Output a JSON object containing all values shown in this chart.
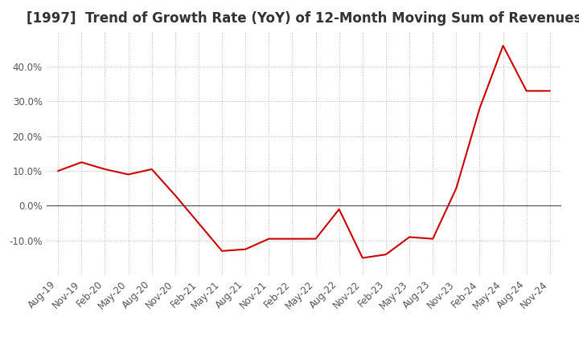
{
  "title": "[1997]  Trend of Growth Rate (YoY) of 12-Month Moving Sum of Revenues",
  "line_color": "#cc0000",
  "bg_color": "#ffffff",
  "plot_bg_color": "#ffffff",
  "grid_color": "#bbbbbb",
  "zero_line_color": "#555555",
  "title_color": "#333333",
  "tick_label_color": "#555555",
  "x_labels": [
    "Aug-19",
    "Nov-19",
    "Feb-20",
    "May-20",
    "Aug-20",
    "Nov-20",
    "Feb-21",
    "May-21",
    "Aug-21",
    "Nov-21",
    "Feb-22",
    "May-22",
    "Aug-22",
    "Nov-22",
    "Feb-23",
    "May-23",
    "Aug-23",
    "Nov-23",
    "Feb-24",
    "May-24",
    "Aug-24",
    "Nov-24"
  ],
  "y_values": [
    10.0,
    12.5,
    10.5,
    9.0,
    10.5,
    3.0,
    -5.0,
    -13.0,
    -12.5,
    -9.5,
    -9.5,
    -9.5,
    -1.0,
    -15.0,
    -14.0,
    -9.0,
    -9.5,
    5.0,
    28.0,
    46.0,
    33.0,
    33.0
  ],
  "ylim": [
    -20,
    50
  ],
  "yticks": [
    -10,
    0,
    10,
    20,
    30,
    40
  ],
  "title_fontsize": 12,
  "tick_fontsize": 8.5
}
